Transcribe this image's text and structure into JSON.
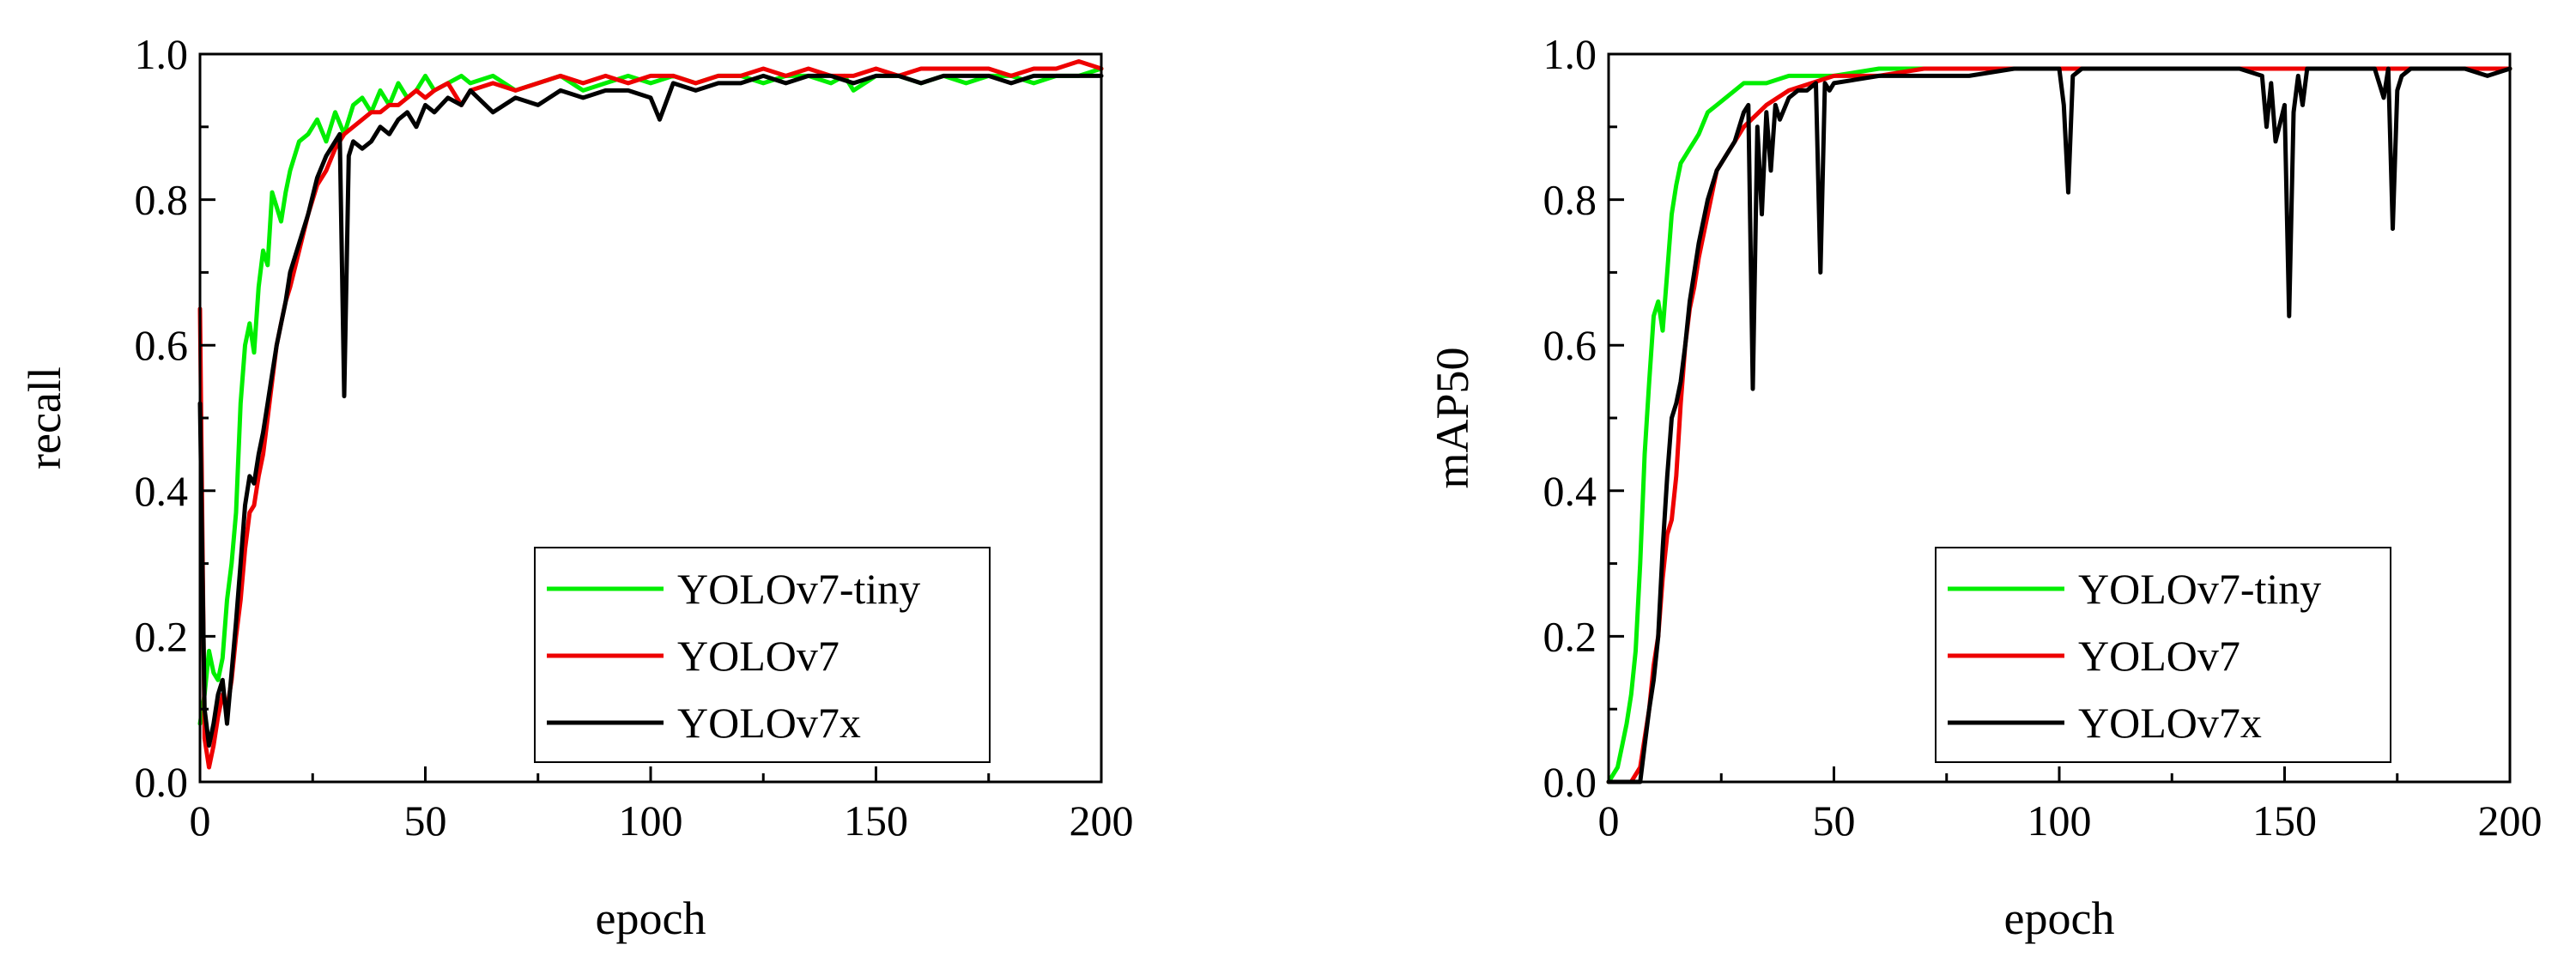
{
  "chart_data": [
    {
      "type": "line",
      "id": "recall",
      "title": "",
      "xlabel": "epoch",
      "ylabel": "recall",
      "xlim": [
        0,
        200
      ],
      "ylim": [
        0.0,
        1.0
      ],
      "xticks": [
        0,
        50,
        100,
        150,
        200
      ],
      "xtick_labels": [
        "0",
        "50",
        "100",
        "150",
        "200"
      ],
      "yticks": [
        0.0,
        0.2,
        0.4,
        0.6,
        0.8,
        1.0
      ],
      "ytick_labels": [
        "0.0",
        "0.2",
        "0.4",
        "0.6",
        "0.8",
        "1.0"
      ],
      "grid": false,
      "legend_position": "bottom-right",
      "series": [
        {
          "name": "YOLOv7-tiny",
          "color": "#00ee00",
          "x": [
            0,
            1,
            2,
            3,
            4,
            5,
            6,
            7,
            8,
            9,
            10,
            11,
            12,
            13,
            14,
            15,
            16,
            17,
            18,
            19,
            20,
            22,
            24,
            26,
            28,
            30,
            32,
            34,
            36,
            38,
            40,
            42,
            44,
            46,
            48,
            50,
            52,
            55,
            58,
            60,
            65,
            70,
            75,
            80,
            85,
            90,
            95,
            100,
            105,
            110,
            115,
            120,
            125,
            130,
            135,
            140,
            143,
            145,
            150,
            155,
            160,
            165,
            170,
            175,
            180,
            185,
            190,
            195,
            200
          ],
          "values": [
            0.08,
            0.12,
            0.18,
            0.15,
            0.14,
            0.17,
            0.25,
            0.3,
            0.37,
            0.52,
            0.6,
            0.63,
            0.59,
            0.68,
            0.73,
            0.71,
            0.81,
            0.79,
            0.77,
            0.81,
            0.84,
            0.88,
            0.89,
            0.91,
            0.88,
            0.92,
            0.89,
            0.93,
            0.94,
            0.92,
            0.95,
            0.93,
            0.96,
            0.94,
            0.95,
            0.97,
            0.95,
            0.96,
            0.97,
            0.96,
            0.97,
            0.95,
            0.96,
            0.97,
            0.95,
            0.96,
            0.97,
            0.96,
            0.97,
            0.96,
            0.97,
            0.97,
            0.96,
            0.97,
            0.97,
            0.96,
            0.97,
            0.95,
            0.97,
            0.97,
            0.96,
            0.97,
            0.96,
            0.97,
            0.97,
            0.96,
            0.97,
            0.97,
            0.98
          ]
        },
        {
          "name": "YOLOv7",
          "color": "#ee0000",
          "x": [
            0,
            1,
            2,
            3,
            4,
            5,
            6,
            7,
            8,
            9,
            10,
            11,
            12,
            13,
            14,
            15,
            16,
            17,
            18,
            19,
            20,
            22,
            24,
            26,
            28,
            30,
            32,
            34,
            36,
            38,
            40,
            42,
            44,
            46,
            48,
            50,
            52,
            55,
            58,
            60,
            65,
            70,
            75,
            80,
            85,
            90,
            95,
            100,
            105,
            110,
            115,
            120,
            125,
            130,
            135,
            140,
            145,
            150,
            155,
            160,
            165,
            170,
            175,
            180,
            185,
            190,
            195,
            200
          ],
          "values": [
            0.65,
            0.06,
            0.02,
            0.05,
            0.09,
            0.12,
            0.1,
            0.14,
            0.2,
            0.25,
            0.32,
            0.37,
            0.38,
            0.42,
            0.45,
            0.5,
            0.55,
            0.6,
            0.63,
            0.66,
            0.68,
            0.73,
            0.78,
            0.82,
            0.84,
            0.87,
            0.89,
            0.9,
            0.91,
            0.92,
            0.92,
            0.93,
            0.93,
            0.94,
            0.95,
            0.94,
            0.95,
            0.96,
            0.93,
            0.95,
            0.96,
            0.95,
            0.96,
            0.97,
            0.96,
            0.97,
            0.96,
            0.97,
            0.97,
            0.96,
            0.97,
            0.97,
            0.98,
            0.97,
            0.98,
            0.97,
            0.97,
            0.98,
            0.97,
            0.98,
            0.98,
            0.98,
            0.98,
            0.97,
            0.98,
            0.98,
            0.99,
            0.98
          ]
        },
        {
          "name": "YOLOv7x",
          "color": "#000000",
          "x": [
            0,
            1,
            2,
            3,
            4,
            5,
            6,
            7,
            8,
            9,
            10,
            11,
            12,
            13,
            14,
            15,
            16,
            17,
            18,
            19,
            20,
            22,
            24,
            26,
            28,
            30,
            31,
            32,
            33,
            34,
            36,
            38,
            40,
            42,
            44,
            46,
            48,
            50,
            52,
            55,
            58,
            60,
            65,
            70,
            75,
            80,
            85,
            90,
            95,
            100,
            102,
            105,
            110,
            115,
            120,
            125,
            130,
            135,
            140,
            145,
            150,
            155,
            160,
            165,
            170,
            175,
            180,
            185,
            190,
            195,
            200
          ],
          "values": [
            0.52,
            0.1,
            0.05,
            0.08,
            0.12,
            0.14,
            0.08,
            0.15,
            0.22,
            0.3,
            0.38,
            0.42,
            0.41,
            0.45,
            0.48,
            0.52,
            0.56,
            0.6,
            0.63,
            0.66,
            0.7,
            0.74,
            0.78,
            0.83,
            0.86,
            0.88,
            0.89,
            0.53,
            0.86,
            0.88,
            0.87,
            0.88,
            0.9,
            0.89,
            0.91,
            0.92,
            0.9,
            0.93,
            0.92,
            0.94,
            0.93,
            0.95,
            0.92,
            0.94,
            0.93,
            0.95,
            0.94,
            0.95,
            0.95,
            0.94,
            0.91,
            0.96,
            0.95,
            0.96,
            0.96,
            0.97,
            0.96,
            0.97,
            0.97,
            0.96,
            0.97,
            0.97,
            0.96,
            0.97,
            0.97,
            0.97,
            0.96,
            0.97,
            0.97,
            0.97,
            0.97
          ]
        }
      ]
    },
    {
      "type": "line",
      "id": "mAP50",
      "title": "",
      "xlabel": "epoch",
      "ylabel": "mAP50",
      "xlim": [
        0,
        200
      ],
      "ylim": [
        0.0,
        1.0
      ],
      "xticks": [
        0,
        50,
        100,
        150,
        200
      ],
      "xtick_labels": [
        "0",
        "50",
        "100",
        "150",
        "200"
      ],
      "yticks": [
        0.0,
        0.2,
        0.4,
        0.6,
        0.8,
        1.0
      ],
      "ytick_labels": [
        "0.0",
        "0.2",
        "0.4",
        "0.6",
        "0.8",
        "1.0"
      ],
      "grid": false,
      "legend_position": "bottom-right",
      "series": [
        {
          "name": "YOLOv7-tiny",
          "color": "#00ee00",
          "x": [
            0,
            2,
            3,
            4,
            5,
            6,
            7,
            8,
            9,
            10,
            11,
            12,
            13,
            14,
            15,
            16,
            17,
            18,
            19,
            20,
            22,
            24,
            26,
            28,
            30,
            35,
            40,
            45,
            50,
            60,
            70,
            80,
            90,
            100,
            110,
            120,
            130,
            140,
            150,
            160,
            170,
            180,
            190,
            200
          ],
          "values": [
            0.0,
            0.02,
            0.05,
            0.08,
            0.12,
            0.18,
            0.3,
            0.45,
            0.55,
            0.64,
            0.66,
            0.62,
            0.7,
            0.78,
            0.82,
            0.85,
            0.86,
            0.87,
            0.88,
            0.89,
            0.92,
            0.93,
            0.94,
            0.95,
            0.96,
            0.96,
            0.97,
            0.97,
            0.97,
            0.98,
            0.98,
            0.98,
            0.98,
            0.98,
            0.98,
            0.98,
            0.98,
            0.98,
            0.98,
            0.98,
            0.98,
            0.98,
            0.98,
            0.98
          ]
        },
        {
          "name": "YOLOv7",
          "color": "#ee0000",
          "x": [
            0,
            5,
            7,
            8,
            9,
            10,
            11,
            12,
            13,
            14,
            15,
            16,
            17,
            18,
            19,
            20,
            22,
            24,
            26,
            28,
            30,
            35,
            40,
            45,
            50,
            60,
            70,
            80,
            90,
            100,
            110,
            120,
            130,
            140,
            150,
            160,
            170,
            180,
            190,
            200
          ],
          "values": [
            0.0,
            0.0,
            0.02,
            0.06,
            0.1,
            0.16,
            0.2,
            0.28,
            0.34,
            0.36,
            0.42,
            0.52,
            0.6,
            0.65,
            0.68,
            0.72,
            0.78,
            0.84,
            0.86,
            0.88,
            0.9,
            0.93,
            0.95,
            0.96,
            0.97,
            0.97,
            0.98,
            0.98,
            0.98,
            0.98,
            0.98,
            0.98,
            0.98,
            0.98,
            0.98,
            0.98,
            0.98,
            0.98,
            0.98,
            0.98
          ]
        },
        {
          "name": "YOLOv7x",
          "color": "#000000",
          "x": [
            0,
            7,
            8,
            9,
            10,
            11,
            12,
            13,
            14,
            15,
            16,
            17,
            18,
            19,
            20,
            22,
            24,
            26,
            28,
            30,
            31,
            32,
            33,
            34,
            35,
            36,
            37,
            38,
            40,
            42,
            44,
            46,
            47,
            48,
            49,
            50,
            60,
            70,
            80,
            90,
            100,
            101,
            102,
            103,
            105,
            110,
            120,
            130,
            140,
            145,
            146,
            147,
            148,
            150,
            151,
            152,
            153,
            154,
            155,
            160,
            165,
            170,
            172,
            173,
            174,
            175,
            176,
            178,
            180,
            185,
            190,
            195,
            200
          ],
          "values": [
            0.0,
            0.0,
            0.05,
            0.1,
            0.14,
            0.2,
            0.32,
            0.42,
            0.5,
            0.52,
            0.55,
            0.6,
            0.66,
            0.7,
            0.74,
            0.8,
            0.84,
            0.86,
            0.88,
            0.92,
            0.93,
            0.54,
            0.9,
            0.78,
            0.92,
            0.84,
            0.93,
            0.91,
            0.94,
            0.95,
            0.95,
            0.96,
            0.7,
            0.96,
            0.95,
            0.96,
            0.97,
            0.97,
            0.97,
            0.98,
            0.98,
            0.93,
            0.81,
            0.97,
            0.98,
            0.98,
            0.98,
            0.98,
            0.98,
            0.97,
            0.9,
            0.96,
            0.88,
            0.93,
            0.64,
            0.92,
            0.97,
            0.93,
            0.98,
            0.98,
            0.98,
            0.98,
            0.94,
            0.98,
            0.76,
            0.95,
            0.97,
            0.98,
            0.98,
            0.98,
            0.98,
            0.97,
            0.98
          ]
        }
      ]
    }
  ]
}
